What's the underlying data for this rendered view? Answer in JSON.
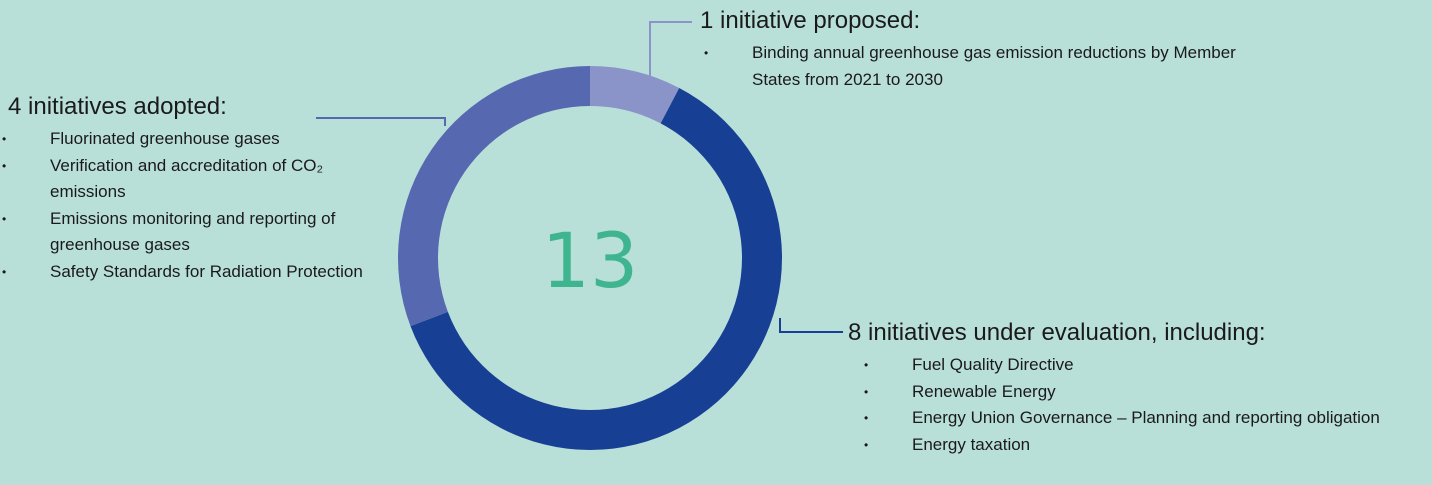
{
  "chart_data": {
    "type": "donut",
    "total": 13,
    "categories": [
      "1 initiative proposed:",
      "8 initiatives under evaluation, including:",
      "4 initiatives adopted:"
    ],
    "values": [
      1,
      8,
      4
    ],
    "colors": [
      "#8a94c9",
      "#173f94",
      "#5568b0"
    ],
    "items": [
      [
        "Binding annual greenhouse gas emission reductions by Member States from 2021 to 2030"
      ],
      [
        "Fuel Quality Directive",
        "Renewable Energy",
        "Energy Union Governance – Planning and reporting obligation",
        "Energy taxation"
      ],
      [
        "Fluorinated greenhouse gases",
        "Verification and accreditation of CO₂ emissions",
        "Emissions monitoring and reporting of greenhouse gases",
        "Safety Standards for Radiation Protection"
      ]
    ]
  }
}
